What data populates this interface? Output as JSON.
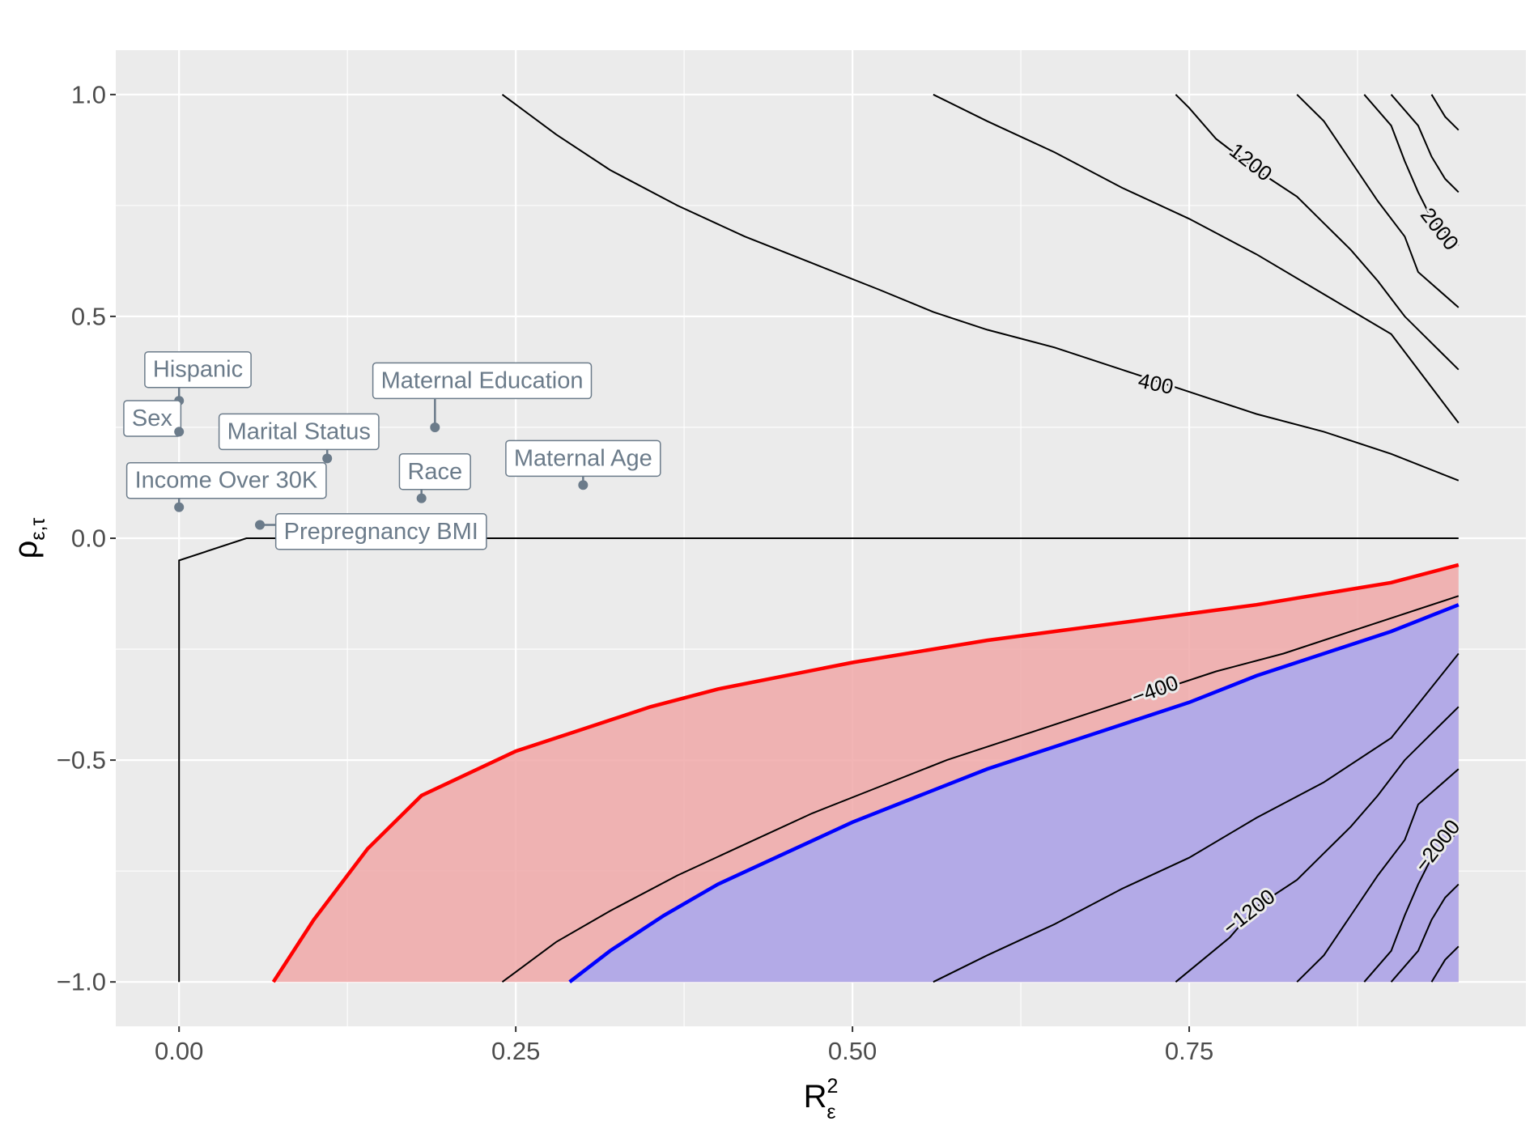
{
  "chart_data": {
    "type": "contour",
    "xlabel": {
      "base": "R",
      "subscript": "ε",
      "superscript": "2"
    },
    "ylabel": {
      "base": "ρ",
      "subscript": "ε,τ"
    },
    "xlim": [
      -0.047,
      1.0
    ],
    "ylim": [
      -1.1,
      1.1
    ],
    "x_ticks": [
      0.0,
      0.25,
      0.5,
      0.75
    ],
    "x_tick_labels": [
      "0.00",
      "0.25",
      "0.50",
      "0.75"
    ],
    "y_ticks": [
      1.0,
      0.5,
      0.0,
      -0.5,
      -1.0
    ],
    "y_tick_labels": [
      "1.0",
      "0.5",
      "0.0",
      "−0.5",
      "−1.0"
    ],
    "grid": true,
    "colors": {
      "panel": "#ebebeb",
      "grid": "#ffffff",
      "red_line": "#ff0000",
      "red_fill": "#f0a8a8",
      "blue_line": "#0000ff",
      "blue_fill": "#a8a8f0",
      "contour": "#000000",
      "covariate": "#6b7b8a"
    },
    "filled_regions": [
      {
        "name": "red-region",
        "color": "red",
        "boundary": [
          [
            0.07,
            -1.0
          ],
          [
            0.1,
            -0.86
          ],
          [
            0.14,
            -0.7
          ],
          [
            0.18,
            -0.58
          ],
          [
            0.25,
            -0.48
          ],
          [
            0.3,
            -0.43
          ],
          [
            0.35,
            -0.38
          ],
          [
            0.4,
            -0.34
          ],
          [
            0.5,
            -0.28
          ],
          [
            0.6,
            -0.23
          ],
          [
            0.7,
            -0.19
          ],
          [
            0.8,
            -0.15
          ],
          [
            0.9,
            -0.1
          ],
          [
            0.95,
            -0.06
          ]
        ]
      },
      {
        "name": "blue-region",
        "color": "blue",
        "boundary": [
          [
            0.29,
            -1.0
          ],
          [
            0.32,
            -0.93
          ],
          [
            0.36,
            -0.85
          ],
          [
            0.4,
            -0.78
          ],
          [
            0.45,
            -0.71
          ],
          [
            0.5,
            -0.64
          ],
          [
            0.55,
            -0.58
          ],
          [
            0.6,
            -0.52
          ],
          [
            0.65,
            -0.47
          ],
          [
            0.7,
            -0.42
          ],
          [
            0.75,
            -0.37
          ],
          [
            0.8,
            -0.31
          ],
          [
            0.85,
            -0.26
          ],
          [
            0.9,
            -0.21
          ],
          [
            0.95,
            -0.15
          ]
        ]
      }
    ],
    "contours": [
      {
        "level": 400,
        "label": "400",
        "label_at": [
          0.725,
          0.345
        ],
        "label_angle": 12,
        "points": [
          [
            0.24,
            1.0
          ],
          [
            0.28,
            0.91
          ],
          [
            0.32,
            0.83
          ],
          [
            0.37,
            0.75
          ],
          [
            0.42,
            0.68
          ],
          [
            0.47,
            0.62
          ],
          [
            0.52,
            0.56
          ],
          [
            0.56,
            0.51
          ],
          [
            0.6,
            0.47
          ],
          [
            0.65,
            0.43
          ],
          [
            0.7,
            0.38
          ],
          [
            0.75,
            0.33
          ],
          [
            0.8,
            0.28
          ],
          [
            0.85,
            0.24
          ],
          [
            0.9,
            0.19
          ],
          [
            0.95,
            0.13
          ]
        ]
      },
      {
        "level": 800,
        "label": "",
        "points": [
          [
            0.56,
            1.0
          ],
          [
            0.6,
            0.94
          ],
          [
            0.65,
            0.87
          ],
          [
            0.7,
            0.79
          ],
          [
            0.75,
            0.72
          ],
          [
            0.8,
            0.64
          ],
          [
            0.85,
            0.55
          ],
          [
            0.9,
            0.46
          ],
          [
            0.95,
            0.26
          ]
        ]
      },
      {
        "level": 1200,
        "label": "1200",
        "label_at": [
          0.795,
          0.845
        ],
        "label_angle": 38,
        "points": [
          [
            0.74,
            1.0
          ],
          [
            0.75,
            0.97
          ],
          [
            0.77,
            0.9
          ],
          [
            0.8,
            0.83
          ],
          [
            0.83,
            0.77
          ],
          [
            0.85,
            0.71
          ],
          [
            0.87,
            0.65
          ],
          [
            0.89,
            0.58
          ],
          [
            0.91,
            0.5
          ],
          [
            0.93,
            0.44
          ],
          [
            0.95,
            0.38
          ]
        ]
      },
      {
        "level": 1600,
        "label": "",
        "points": [
          [
            0.83,
            1.0
          ],
          [
            0.85,
            0.94
          ],
          [
            0.87,
            0.85
          ],
          [
            0.89,
            0.76
          ],
          [
            0.91,
            0.68
          ],
          [
            0.92,
            0.6
          ],
          [
            0.95,
            0.52
          ]
        ]
      },
      {
        "level": 2000,
        "label": "2000",
        "label_at": [
          0.935,
          0.695
        ],
        "label_angle": 52,
        "points": [
          [
            0.88,
            1.0
          ],
          [
            0.9,
            0.93
          ],
          [
            0.91,
            0.85
          ],
          [
            0.92,
            0.78
          ],
          [
            0.93,
            0.72
          ],
          [
            0.95,
            0.66
          ]
        ]
      },
      {
        "level": 2400,
        "label": "",
        "points": [
          [
            0.9,
            1.0
          ],
          [
            0.92,
            0.93
          ],
          [
            0.93,
            0.86
          ],
          [
            0.94,
            0.81
          ],
          [
            0.95,
            0.78
          ]
        ]
      },
      {
        "level": 2800,
        "label": "",
        "points": [
          [
            0.93,
            1.0
          ],
          [
            0.94,
            0.95
          ],
          [
            0.95,
            0.92
          ]
        ]
      },
      {
        "level": 0,
        "label": "",
        "points": [
          [
            0.0,
            -1.0
          ],
          [
            0.0,
            -0.05
          ],
          [
            0.05,
            0.0
          ],
          [
            0.95,
            0.0
          ]
        ]
      },
      {
        "level": -400,
        "label": "−400",
        "label_at": [
          0.725,
          -0.345
        ],
        "label_angle": -20,
        "points": [
          [
            0.24,
            -1.0
          ],
          [
            0.28,
            -0.91
          ],
          [
            0.32,
            -0.84
          ],
          [
            0.37,
            -0.76
          ],
          [
            0.42,
            -0.69
          ],
          [
            0.47,
            -0.62
          ],
          [
            0.52,
            -0.56
          ],
          [
            0.57,
            -0.5
          ],
          [
            0.62,
            -0.45
          ],
          [
            0.67,
            -0.4
          ],
          [
            0.72,
            -0.35
          ],
          [
            0.77,
            -0.3
          ],
          [
            0.82,
            -0.26
          ],
          [
            0.87,
            -0.21
          ],
          [
            0.9,
            -0.18
          ],
          [
            0.95,
            -0.13
          ]
        ]
      },
      {
        "level": -800,
        "label": "",
        "points": [
          [
            0.56,
            -1.0
          ],
          [
            0.6,
            -0.94
          ],
          [
            0.65,
            -0.87
          ],
          [
            0.7,
            -0.79
          ],
          [
            0.75,
            -0.72
          ],
          [
            0.8,
            -0.63
          ],
          [
            0.85,
            -0.55
          ],
          [
            0.9,
            -0.45
          ],
          [
            0.95,
            -0.26
          ]
        ]
      },
      {
        "level": -1200,
        "label": "−1200",
        "label_at": [
          0.795,
          -0.845
        ],
        "label_angle": -38,
        "points": [
          [
            0.74,
            -1.0
          ],
          [
            0.76,
            -0.95
          ],
          [
            0.78,
            -0.9
          ],
          [
            0.8,
            -0.83
          ],
          [
            0.83,
            -0.77
          ],
          [
            0.85,
            -0.71
          ],
          [
            0.87,
            -0.65
          ],
          [
            0.89,
            -0.58
          ],
          [
            0.91,
            -0.5
          ],
          [
            0.93,
            -0.44
          ],
          [
            0.95,
            -0.38
          ]
        ]
      },
      {
        "level": -1600,
        "label": "",
        "points": [
          [
            0.83,
            -1.0
          ],
          [
            0.85,
            -0.94
          ],
          [
            0.87,
            -0.85
          ],
          [
            0.89,
            -0.76
          ],
          [
            0.91,
            -0.68
          ],
          [
            0.92,
            -0.6
          ],
          [
            0.95,
            -0.52
          ]
        ]
      },
      {
        "level": -2000,
        "label": "−2000",
        "label_at": [
          0.935,
          -0.695
        ],
        "label_angle": -52,
        "points": [
          [
            0.88,
            -1.0
          ],
          [
            0.9,
            -0.93
          ],
          [
            0.91,
            -0.85
          ],
          [
            0.92,
            -0.78
          ],
          [
            0.93,
            -0.72
          ],
          [
            0.95,
            -0.66
          ]
        ]
      },
      {
        "level": -2400,
        "label": "",
        "points": [
          [
            0.9,
            -1.0
          ],
          [
            0.92,
            -0.93
          ],
          [
            0.93,
            -0.86
          ],
          [
            0.94,
            -0.81
          ],
          [
            0.95,
            -0.78
          ]
        ]
      },
      {
        "level": -2800,
        "label": "",
        "points": [
          [
            0.93,
            -1.0
          ],
          [
            0.94,
            -0.95
          ],
          [
            0.95,
            -0.92
          ]
        ]
      }
    ],
    "covariates": [
      {
        "name": "Hispanic",
        "x": 0.0,
        "y": 0.31,
        "label_at": [
          0.014,
          0.38
        ]
      },
      {
        "name": "Sex",
        "x": 0.0,
        "y": 0.24,
        "label_at": [
          -0.02,
          0.27
        ]
      },
      {
        "name": "Marital Status",
        "x": 0.11,
        "y": 0.18,
        "label_at": [
          0.089,
          0.24
        ]
      },
      {
        "name": "Maternal Education",
        "x": 0.19,
        "y": 0.25,
        "label_at": [
          0.225,
          0.355
        ]
      },
      {
        "name": "Race",
        "x": 0.18,
        "y": 0.09,
        "label_at": [
          0.19,
          0.15
        ]
      },
      {
        "name": "Maternal Age",
        "x": 0.3,
        "y": 0.12,
        "label_at": [
          0.3,
          0.18
        ]
      },
      {
        "name": "Income Over 30K",
        "x": 0.0,
        "y": 0.07,
        "label_at": [
          0.035,
          0.13
        ]
      },
      {
        "name": "Prepregnancy BMI",
        "x": 0.06,
        "y": 0.03,
        "label_at": [
          0.15,
          0.015
        ]
      }
    ]
  }
}
